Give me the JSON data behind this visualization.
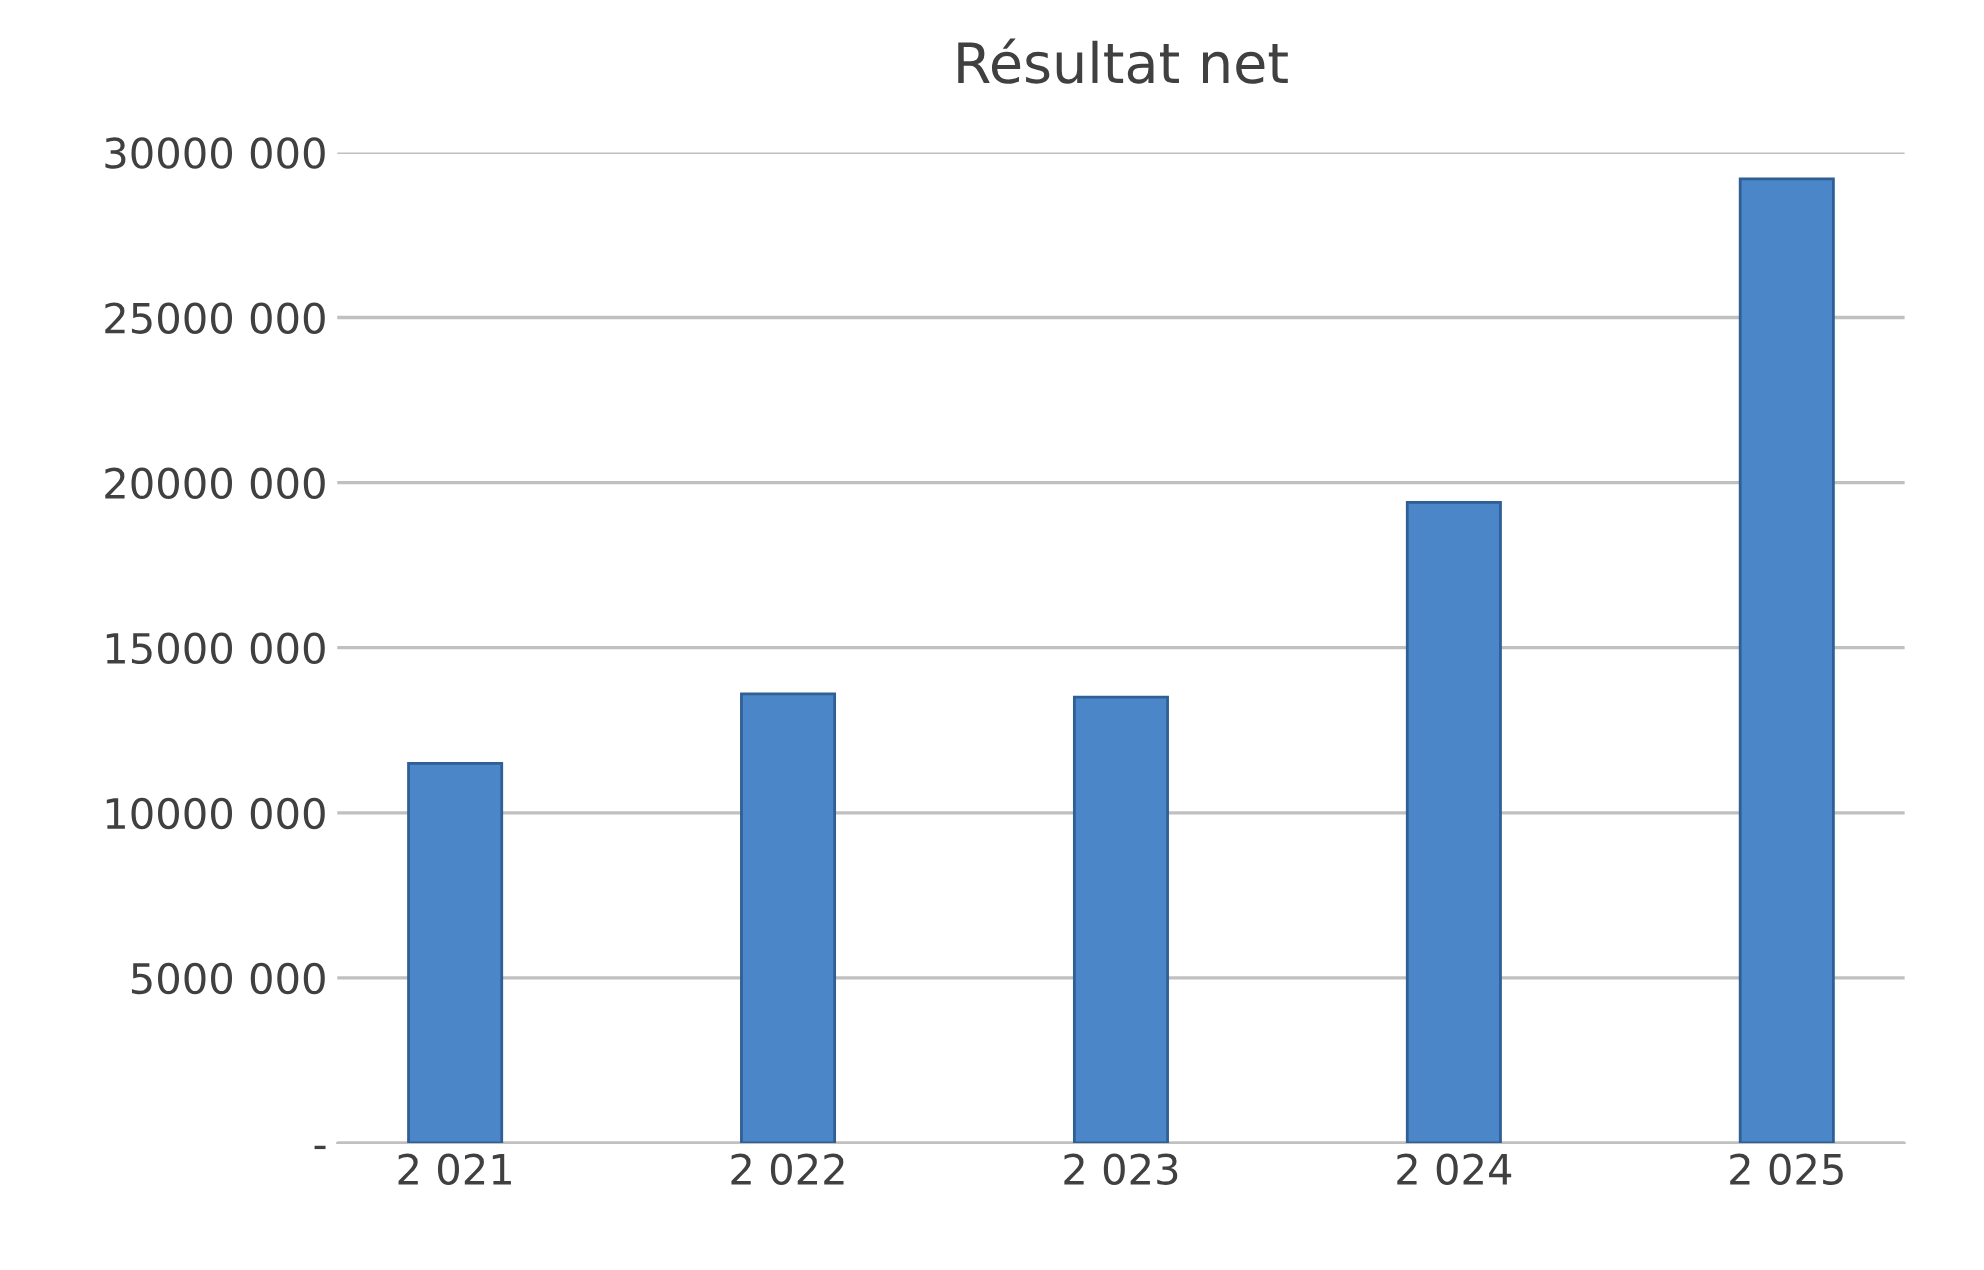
{
  "chart_data": {
    "type": "bar",
    "title": "Résultat net",
    "categories": [
      "2 021",
      "2 022",
      "2 023",
      "2 024",
      "2 025"
    ],
    "values": [
      11500000,
      13600000,
      13500000,
      19400000,
      29200000
    ],
    "color": "#4a86c8",
    "ylim": [
      0,
      30000000
    ],
    "yticks": [
      {
        "value": 0,
        "label": "-"
      },
      {
        "value": 5000000,
        "label": "5000 000"
      },
      {
        "value": 10000000,
        "label": "10000 000"
      },
      {
        "value": 15000000,
        "label": "15000 000"
      },
      {
        "value": 20000000,
        "label": "20000 000"
      },
      {
        "value": 25000000,
        "label": "25000 000"
      },
      {
        "value": 30000000,
        "label": "30000 000"
      }
    ],
    "grid": "y"
  }
}
